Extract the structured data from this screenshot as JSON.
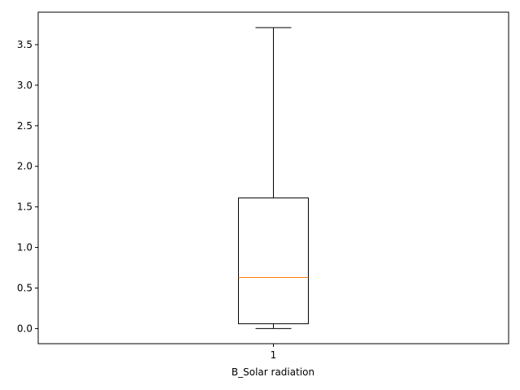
{
  "chart_data": {
    "type": "boxplot",
    "title": "",
    "xlabel": "B_Solar radiation",
    "ylabel": "",
    "categories": [
      "1"
    ],
    "ylim": [
      -0.186,
      3.9
    ],
    "yticks": [
      0.0,
      0.5,
      1.0,
      1.5,
      2.0,
      2.5,
      3.0,
      3.5
    ],
    "ytick_labels": [
      "0.0",
      "0.5",
      "1.0",
      "1.5",
      "2.0",
      "2.5",
      "3.0",
      "3.5"
    ],
    "grid": false,
    "boxes": [
      {
        "position": 1,
        "whisker_low": 0.0,
        "q1": 0.06,
        "median": 0.63,
        "q3": 1.61,
        "whisker_high": 3.71
      }
    ],
    "colors": {
      "box": "#000000",
      "median": "#ff7f0e"
    }
  }
}
